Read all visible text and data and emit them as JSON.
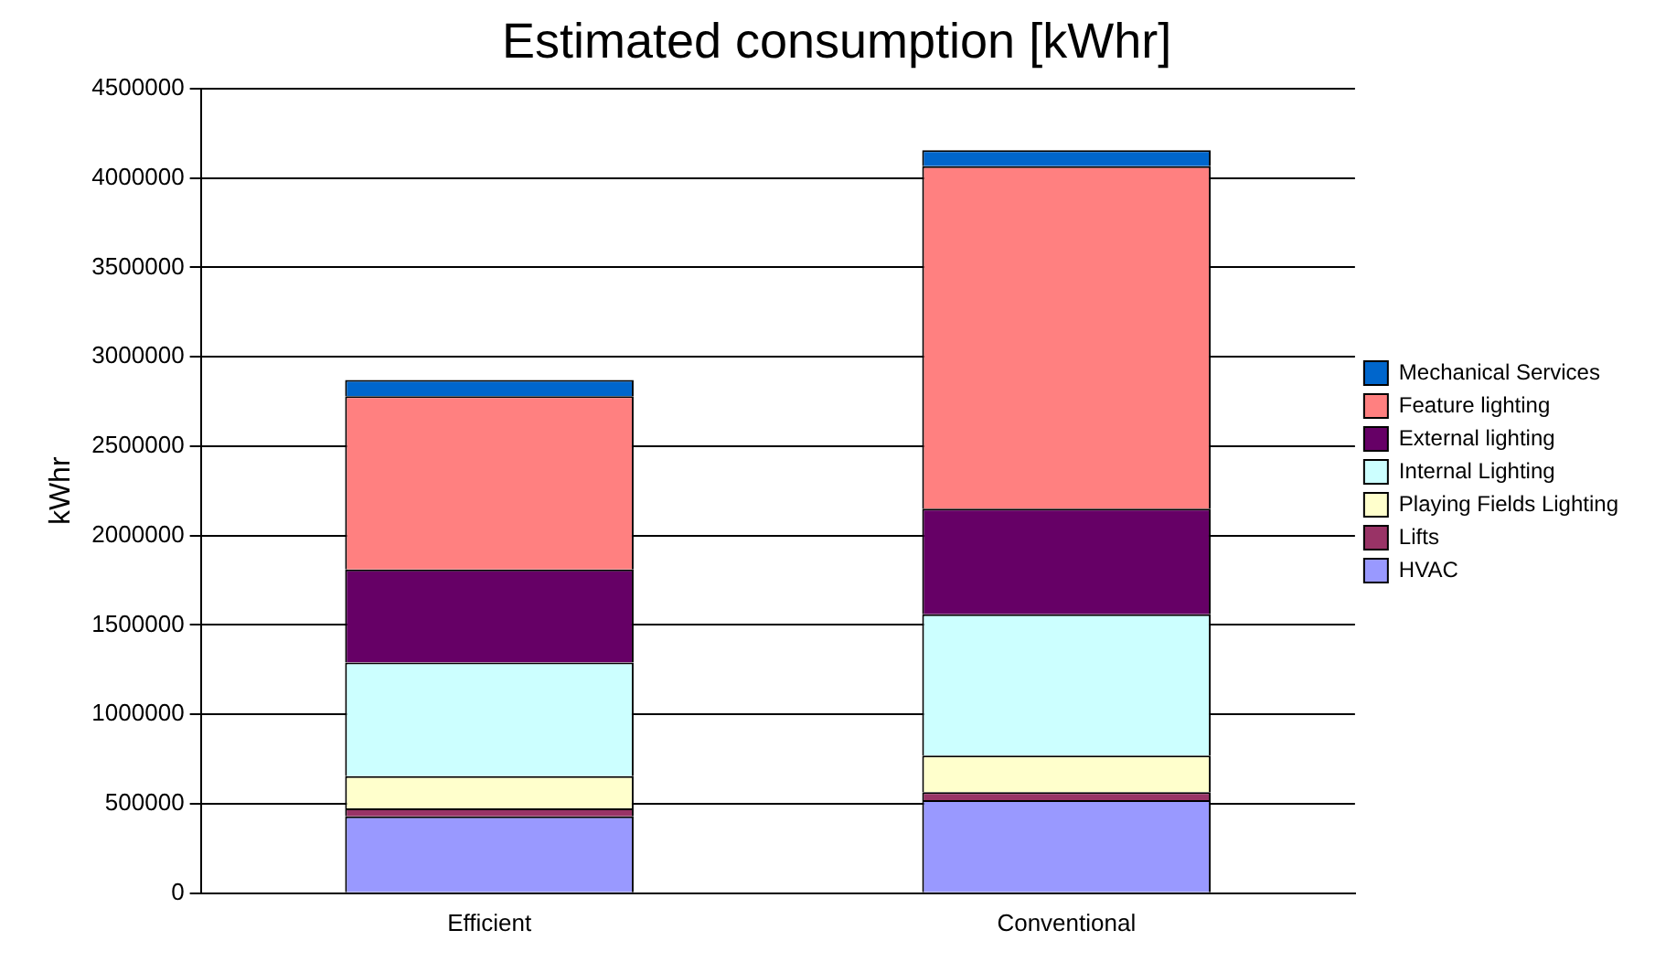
{
  "chart_data": {
    "type": "bar",
    "title": "Estimated consumption [kWhr]",
    "ylabel": "kWhr",
    "categories": [
      "Efficient",
      "Conventional"
    ],
    "stacked": true,
    "legend": "right",
    "grid": "y",
    "ylim": [
      0,
      4500000
    ],
    "yticks": [
      0,
      500000,
      1000000,
      1500000,
      2000000,
      2500000,
      3000000,
      3500000,
      4000000,
      4500000
    ],
    "series": [
      {
        "name": "HVAC",
        "color": "#9999ff",
        "values": [
          430000,
          520000
        ]
      },
      {
        "name": "Lifts",
        "color": "#993366",
        "values": [
          45000,
          45000
        ]
      },
      {
        "name": "Playing Fields Lighting",
        "color": "#ffffcc",
        "values": [
          180000,
          205000
        ]
      },
      {
        "name": "Internal Lighting",
        "color": "#ccffff",
        "values": [
          635000,
          790000
        ]
      },
      {
        "name": "External lighting",
        "color": "#660066",
        "values": [
          520000,
          590000
        ]
      },
      {
        "name": "Feature lighting",
        "color": "#ff8080",
        "values": [
          970000,
          1915000
        ]
      },
      {
        "name": "Mechanical Services",
        "color": "#0066cc",
        "values": [
          90000,
          90000
        ]
      }
    ]
  }
}
